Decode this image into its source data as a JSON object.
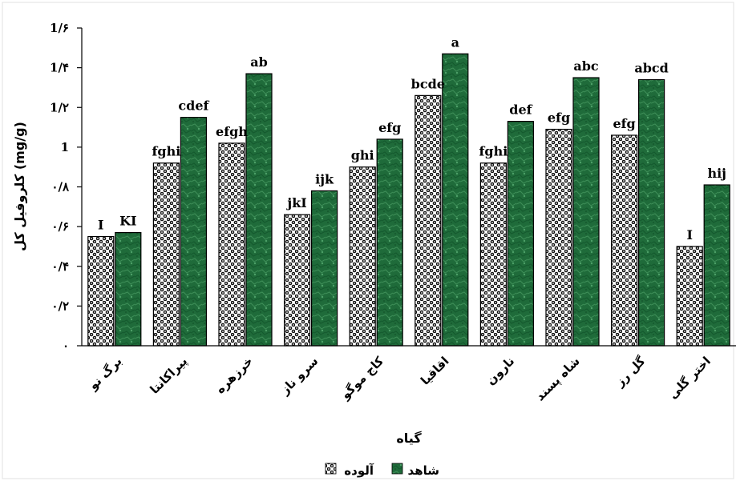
{
  "chart_data": {
    "type": "bar",
    "xlabel": "گیاه",
    "ylabel": "کلروفیل کل (mg/g)",
    "ylim": [
      0,
      1.6
    ],
    "yticks": [
      {
        "value": 0,
        "label": "۰"
      },
      {
        "value": 0.2,
        "label": "۰/۲"
      },
      {
        "value": 0.4,
        "label": "۰/۴"
      },
      {
        "value": 0.6,
        "label": "۰/۶"
      },
      {
        "value": 0.8,
        "label": "۰/۸"
      },
      {
        "value": 1.0,
        "label": "1"
      },
      {
        "value": 1.2,
        "label": "1/۲"
      },
      {
        "value": 1.4,
        "label": "1/۴"
      },
      {
        "value": 1.6,
        "label": "1/۶"
      }
    ],
    "grid": false,
    "legend_position": "bottom",
    "categories": [
      "برگ نو",
      "پیراکانتا",
      "خرزهره",
      "سرو ناز",
      "کاج موگو",
      "اقاقیا",
      "نارون",
      "شاه پسند",
      "گل رز",
      "اختر گلی"
    ],
    "series": [
      {
        "name": "آلوده",
        "pattern": "checker",
        "color": "#000000",
        "values": [
          0.55,
          0.92,
          1.02,
          0.66,
          0.9,
          1.26,
          0.92,
          1.09,
          1.06,
          0.5
        ],
        "labels": [
          "I",
          "fghi",
          "efgh",
          "jkI",
          "ghi",
          "bcde",
          "fghi",
          "efg",
          "efg",
          "I"
        ]
      },
      {
        "name": "شاهد",
        "pattern": "green-marble",
        "color": "#1f6b3a",
        "values": [
          0.57,
          1.15,
          1.37,
          0.78,
          1.04,
          1.47,
          1.13,
          1.35,
          1.34,
          0.81
        ],
        "labels": [
          "KI",
          "cdef",
          "ab",
          "ijk",
          "efg",
          "a",
          "def",
          "abc",
          "abcd",
          "hij"
        ]
      }
    ]
  }
}
